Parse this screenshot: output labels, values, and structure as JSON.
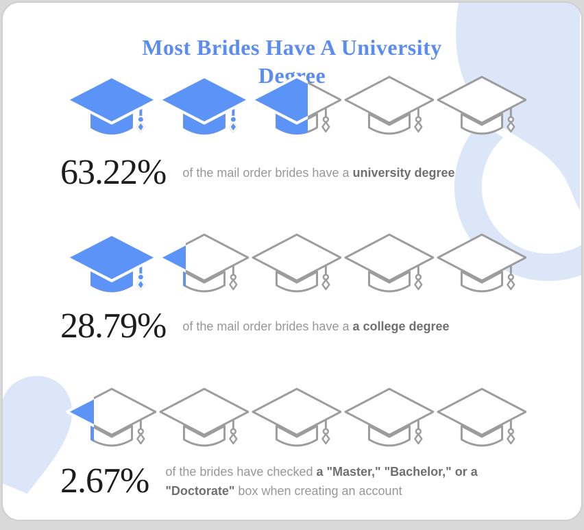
{
  "title": {
    "line1": "Most Brides Have A University",
    "line2": "Degree"
  },
  "colors": {
    "title_blue": "#5a8cf2",
    "cap_fill_blue": "#5b93f7",
    "cap_outline_gray": "#9c9c9c",
    "decoration_light_blue": "#dce6f9",
    "percent_text": "#1d1d1d",
    "description_gray": "#979797",
    "description_bold_gray": "#6f6f6f",
    "card_background": "#ffffff",
    "page_background": "#d9d9da"
  },
  "stats": [
    {
      "percent": "63.22%",
      "description": {
        "prefix": "of the mail order brides have a ",
        "bold": "university degree",
        "suffix": ""
      },
      "caps_total": 5,
      "cap_fill_percents": [
        100,
        100,
        63,
        0,
        0
      ]
    },
    {
      "percent": "28.79%",
      "description": {
        "prefix": "of the mail order brides have a ",
        "bold": "a college degree",
        "suffix": ""
      },
      "caps_total": 5,
      "cap_fill_percents": [
        100,
        30,
        0,
        0,
        0
      ]
    },
    {
      "percent": "2.67%",
      "description": {
        "prefix": "of the brides have checked ",
        "bold": "a \"Master,\" \"Bachelor,\" or a \"Doctorate\"",
        "suffix": " box when creating an account"
      },
      "caps_total": 5,
      "cap_fill_percents": [
        31,
        0,
        0,
        0,
        0
      ]
    }
  ],
  "icons": {
    "graduation_cap": "graduation-cap",
    "heart": "heart",
    "ring": "ring",
    "blob": "blob"
  },
  "chart_data": {
    "type": "pictogram-bar",
    "title": "Most Brides Have A University Degree",
    "categories": [
      "university degree",
      "a college degree",
      "checked a \"Master,\" \"Bachelor,\" or a \"Doctorate\" box when creating an account"
    ],
    "values": [
      63.22,
      28.79,
      2.67
    ],
    "unit": "%",
    "icons_per_row": 5,
    "icon": "graduation-cap",
    "legend_position": "none",
    "grid": false
  }
}
